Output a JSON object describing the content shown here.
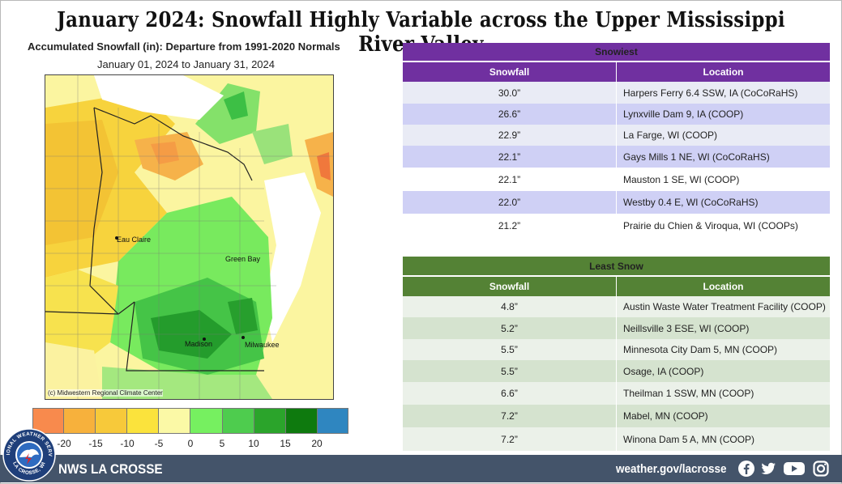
{
  "title": "January 2024:  Snowfall Highly Variable across the Upper Mississippi River Valley",
  "map": {
    "title": "Accumulated Snowfall (in): Departure from 1991-2020 Normals",
    "dates": "January 01, 2024 to January 31, 2024",
    "credit": "(c) Midwestern Regional Climate Center",
    "cities": [
      {
        "name": "Eau Claire"
      },
      {
        "name": "Green Bay"
      },
      {
        "name": "Madison"
      },
      {
        "name": "Milwaukee"
      }
    ],
    "legend": {
      "colors": [
        "#f88a4d",
        "#f7b13c",
        "#f7c93a",
        "#fbe33c",
        "#fbf9a6",
        "#76f060",
        "#4ecc4e",
        "#2ba42b",
        "#0e7a0e",
        "#2f86c0"
      ],
      "ticks": [
        "-20",
        "-15",
        "-10",
        "-5",
        "0",
        "5",
        "10",
        "15",
        "20"
      ]
    }
  },
  "snowiest": {
    "heading": "Snowiest",
    "col_snowfall": "Snowfall",
    "col_location": "Location",
    "rows": [
      {
        "snowfall": "30.0”",
        "location": "Harpers Ferry 6.4 SSW, IA (CoCoRaHS)"
      },
      {
        "snowfall": "26.6”",
        "location": "Lynxville Dam 9, IA (COOP)"
      },
      {
        "snowfall": "22.9”",
        "location": "La Farge, WI (COOP)"
      },
      {
        "snowfall": "22.1”",
        "location": "Gays Mills 1 NE, WI (CoCoRaHS)"
      },
      {
        "snowfall": "22.1”",
        "location": "Mauston 1 SE, WI (COOP)"
      },
      {
        "snowfall": "22.0”",
        "location": "Westby 0.4 E, WI (CoCoRaHS)"
      },
      {
        "snowfall": "21.2”",
        "location": "Prairie du Chien & Viroqua, WI (COOPs)"
      }
    ]
  },
  "least": {
    "heading": "Least Snow",
    "col_snowfall": "Snowfall",
    "col_location": "Location",
    "rows": [
      {
        "snowfall": "4.8”",
        "location": "Austin Waste Water Treatment Facility (COOP)"
      },
      {
        "snowfall": "5.2”",
        "location": "Neillsville 3 ESE, WI (COOP)"
      },
      {
        "snowfall": "5.5”",
        "location": "Minnesota City Dam 5, MN (COOP)"
      },
      {
        "snowfall": "5.5”",
        "location": "Osage, IA (COOP)"
      },
      {
        "snowfall": "6.6”",
        "location": "Theilman 1 SSW, MN (COOP)"
      },
      {
        "snowfall": "7.2”",
        "location": "Mabel, MN (COOP)"
      },
      {
        "snowfall": "7.2”",
        "location": "Winona Dam 5 A, MN (COOP)"
      }
    ]
  },
  "footer": {
    "office": "NWS LA CROSSE",
    "url": "weather.gov/lacrosse",
    "logo_text_top": "NATIONAL WEATHER SERVICE",
    "logo_text_bottom": "LA CROSSE, WI",
    "social_icons": [
      "facebook-icon",
      "twitter-icon",
      "youtube-icon",
      "instagram-icon"
    ]
  }
}
